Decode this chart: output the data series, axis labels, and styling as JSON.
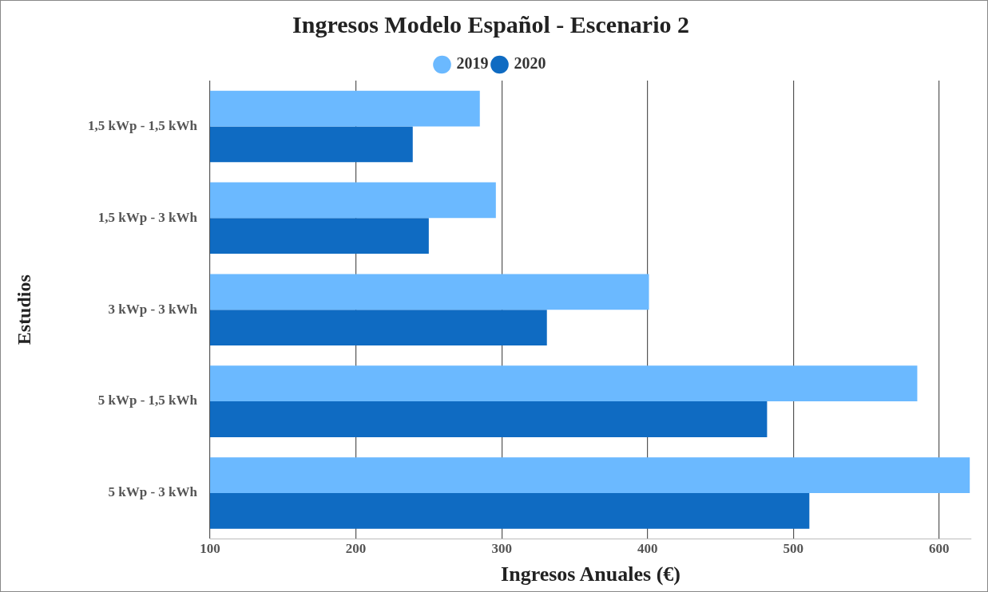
{
  "chart_data": {
    "type": "bar",
    "orientation": "horizontal",
    "title": "Ingresos Modelo Español - Escenario 2",
    "xlabel": "Ingresos Anuales (€)",
    "ylabel": "Estudios",
    "categories": [
      "1,5 kWp - 1,5 kWh",
      "1,5 kWp - 3 kWh",
      "3 kWp - 3 kWh",
      "5 kWp - 1,5 kWh",
      "5 kWp - 3 kWh"
    ],
    "series": [
      {
        "name": "2019",
        "color": "#6bb9ff",
        "values": [
          285,
          296,
          401,
          585,
          621
        ]
      },
      {
        "name": "2020",
        "color": "#0f6bc2",
        "values": [
          239,
          250,
          331,
          482,
          511
        ]
      }
    ],
    "xlim": [
      100,
      622
    ],
    "xticks": [
      100,
      200,
      300,
      400,
      500,
      600
    ],
    "grid": "x",
    "legend": "top"
  }
}
